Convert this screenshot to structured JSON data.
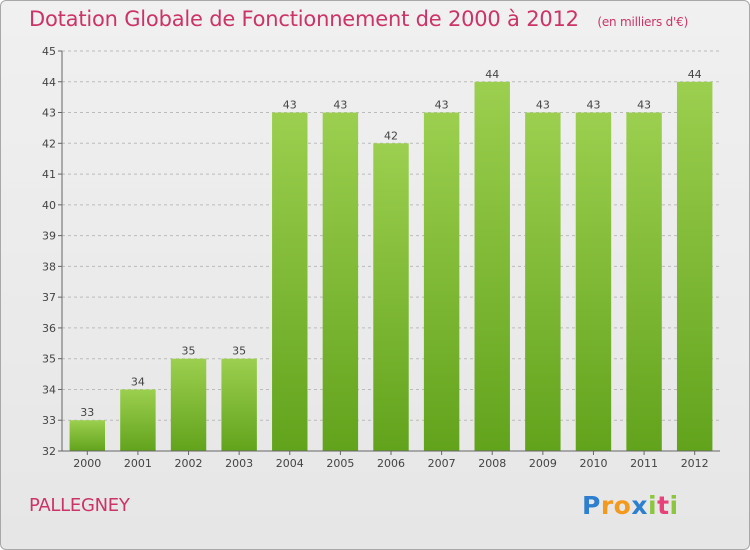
{
  "title": {
    "main": "Dotation Globale de Fonctionnement de 2000 à 2012",
    "unit": "(en milliers d'€)"
  },
  "commune": "PALLEGNEY",
  "logo": {
    "text": "Proxiti",
    "letters": [
      {
        "ch": "P",
        "color": "#2f7fcf"
      },
      {
        "ch": "r",
        "color": "#f39a1e"
      },
      {
        "ch": "o",
        "color": "#f39a1e"
      },
      {
        "ch": "x",
        "color": "#2f7fcf"
      },
      {
        "ch": "i",
        "color": "#8cc63f"
      },
      {
        "ch": "t",
        "color": "#e8427a"
      },
      {
        "ch": "i",
        "color": "#8cc63f"
      }
    ]
  },
  "colors": {
    "title": "#cc3366",
    "bar_top": "#9ccf4f",
    "bar_bottom": "#62a31c",
    "grid": "#bbbbbb"
  },
  "chart_data": {
    "type": "bar",
    "categories": [
      "2000",
      "2001",
      "2002",
      "2003",
      "2004",
      "2005",
      "2006",
      "2007",
      "2008",
      "2009",
      "2010",
      "2011",
      "2012"
    ],
    "values": [
      33,
      34,
      35,
      35,
      43,
      43,
      42,
      43,
      44,
      43,
      43,
      43,
      44
    ],
    "ylim": [
      32,
      45
    ],
    "yticks": [
      32,
      33,
      34,
      35,
      36,
      37,
      38,
      39,
      40,
      41,
      42,
      43,
      44,
      45
    ],
    "grid": true,
    "grid_style": "dashed"
  }
}
